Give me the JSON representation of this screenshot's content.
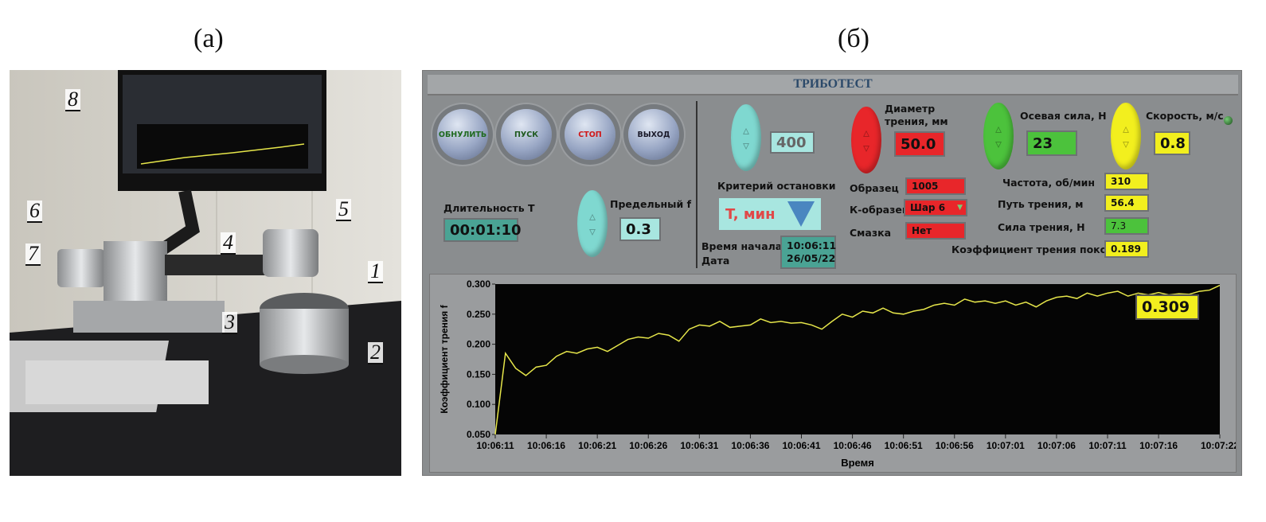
{
  "labels": {
    "a": "(а)",
    "b": "(б)"
  },
  "photo": {
    "callouts": [
      "1",
      "2",
      "3",
      "4",
      "5",
      "6",
      "7",
      "8"
    ]
  },
  "ui": {
    "title": "ТРИБОТЕСТ",
    "buttons": [
      {
        "label": "ОБНУЛИТЬ",
        "color": "#1f6a1f"
      },
      {
        "label": "ПУСК",
        "color": "#1f5a1f"
      },
      {
        "label": "СТОП",
        "color": "#d01818"
      },
      {
        "label": "ВЫХОД",
        "color": "#1a1a2a"
      }
    ],
    "duration": {
      "label": "Длительность T",
      "value": "00:01:10"
    },
    "limit_f": {
      "label": "Предельный f",
      "value": "0.3"
    },
    "count_value": "400",
    "stop_criterion": {
      "label": "Критерий остановки",
      "value": "T, мин"
    },
    "start": {
      "time_label": "Время начала",
      "date_label": "Дата",
      "time": "10:06:11",
      "date": "26/05/22"
    },
    "diameter": {
      "label1": "Диаметр",
      "label2": "трения, мм",
      "value": "50.0"
    },
    "axial": {
      "label": "Осевая сила, Н",
      "value": "23"
    },
    "speed": {
      "label": "Скорость, м/с",
      "value": "0.8"
    },
    "sample": {
      "label": "Образец",
      "value": "1005"
    },
    "counter_sample": {
      "label": "К-образец",
      "value": "Шар 6"
    },
    "lubricant": {
      "label": "Смазка",
      "value": "Нет"
    },
    "freq": {
      "label": "Частота, об/мин",
      "value": "310"
    },
    "path": {
      "label": "Путь трения, м",
      "value": "56.4"
    },
    "friction_force": {
      "label": "Сила трения, Н",
      "value": "7.3"
    },
    "static_coef": {
      "label": "Коэффициент трения покоя",
      "value": "0.189"
    },
    "colors": {
      "red": "#e8262a",
      "green": "#4cc23c",
      "yellow": "#f2ef1e",
      "cyan": "#7fd8d0",
      "teal": "#4aa394"
    }
  },
  "chart_data": {
    "type": "line",
    "xlabel": "Время",
    "ylabel": "Коэффициент трения f",
    "ylim": [
      0.05,
      0.3
    ],
    "yticks": [
      "0.050",
      "0.100",
      "0.150",
      "0.200",
      "0.250",
      "0.300"
    ],
    "xticks": [
      "10:06:11",
      "10:06:16",
      "10:06:21",
      "10:06:26",
      "10:06:31",
      "10:06:36",
      "10:06:41",
      "10:06:46",
      "10:06:51",
      "10:06:56",
      "10:07:01",
      "10:07:06",
      "10:07:11",
      "10:07:16",
      "10:07:22"
    ],
    "current_value": "0.309",
    "line_color": "#e6e64a",
    "background": "#050505",
    "x": [
      "10:06:11",
      "10:06:12",
      "10:06:13",
      "10:06:14",
      "10:06:15",
      "10:06:16",
      "10:06:17",
      "10:06:18",
      "10:06:19",
      "10:06:20",
      "10:06:21",
      "10:06:22",
      "10:06:23",
      "10:06:24",
      "10:06:25",
      "10:06:26",
      "10:06:27",
      "10:06:28",
      "10:06:29",
      "10:06:30",
      "10:06:31",
      "10:06:32",
      "10:06:33",
      "10:06:34",
      "10:06:35",
      "10:06:36",
      "10:06:37",
      "10:06:38",
      "10:06:39",
      "10:06:40",
      "10:06:41",
      "10:06:42",
      "10:06:43",
      "10:06:44",
      "10:06:45",
      "10:06:46",
      "10:06:47",
      "10:06:48",
      "10:06:49",
      "10:06:50",
      "10:06:51",
      "10:06:52",
      "10:06:53",
      "10:06:54",
      "10:06:55",
      "10:06:56",
      "10:06:57",
      "10:06:58",
      "10:06:59",
      "10:07:00",
      "10:07:01",
      "10:07:02",
      "10:07:03",
      "10:07:04",
      "10:07:05",
      "10:07:06",
      "10:07:07",
      "10:07:08",
      "10:07:09",
      "10:07:10",
      "10:07:11",
      "10:07:12",
      "10:07:13",
      "10:07:14",
      "10:07:15",
      "10:07:16",
      "10:07:17",
      "10:07:18",
      "10:07:19",
      "10:07:20",
      "10:07:21",
      "10:07:22"
    ],
    "y": [
      0.05,
      0.185,
      0.16,
      0.148,
      0.162,
      0.165,
      0.18,
      0.188,
      0.185,
      0.192,
      0.195,
      0.188,
      0.198,
      0.208,
      0.212,
      0.21,
      0.218,
      0.215,
      0.205,
      0.225,
      0.232,
      0.23,
      0.238,
      0.228,
      0.23,
      0.232,
      0.242,
      0.236,
      0.238,
      0.235,
      0.236,
      0.232,
      0.225,
      0.238,
      0.25,
      0.245,
      0.255,
      0.252,
      0.26,
      0.252,
      0.25,
      0.255,
      0.258,
      0.265,
      0.268,
      0.265,
      0.275,
      0.27,
      0.272,
      0.268,
      0.272,
      0.265,
      0.27,
      0.262,
      0.272,
      0.278,
      0.28,
      0.276,
      0.285,
      0.28,
      0.285,
      0.288,
      0.28,
      0.285,
      0.282,
      0.286,
      0.282,
      0.284,
      0.283,
      0.288,
      0.29,
      0.298
    ]
  }
}
